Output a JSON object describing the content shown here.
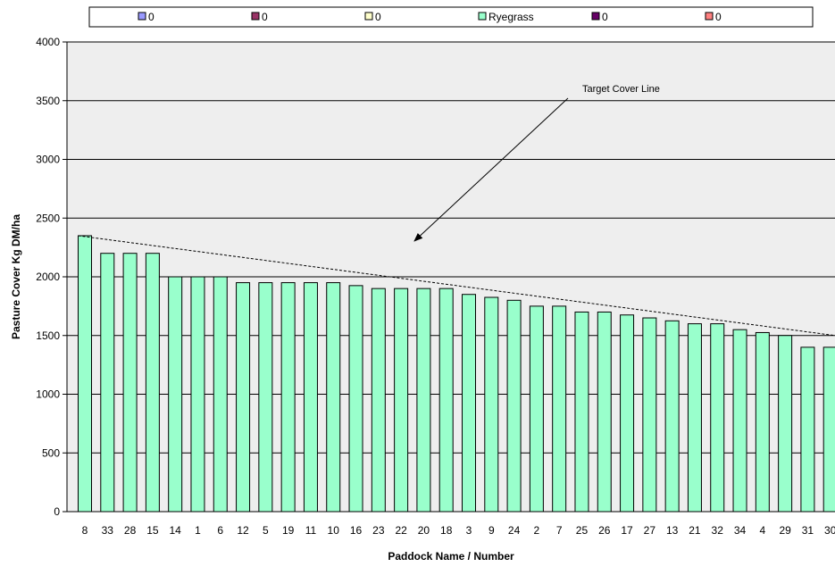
{
  "chart_data": {
    "type": "bar",
    "title": "",
    "xlabel": "Paddock Name / Number",
    "ylabel": "Pasture Cover Kg DM/ha",
    "ylim": [
      0,
      4000
    ],
    "yticks": [
      0,
      500,
      1000,
      1500,
      2000,
      2500,
      3000,
      3500,
      4000
    ],
    "grid": true,
    "categories": [
      "8",
      "33",
      "28",
      "15",
      "14",
      "1",
      "6",
      "12",
      "5",
      "19",
      "11",
      "10",
      "16",
      "23",
      "22",
      "20",
      "18",
      "3",
      "9",
      "24",
      "2",
      "7",
      "25",
      "26",
      "17",
      "27",
      "13",
      "21",
      "32",
      "34",
      "4",
      "29",
      "31",
      "30"
    ],
    "series": [
      {
        "name": "Ryegrass",
        "color": "#99ffcc",
        "values": [
          2350,
          2200,
          2200,
          2200,
          2000,
          2000,
          2000,
          1950,
          1950,
          1950,
          1950,
          1950,
          1925,
          1900,
          1900,
          1900,
          1900,
          1850,
          1825,
          1800,
          1750,
          1750,
          1700,
          1700,
          1675,
          1650,
          1625,
          1600,
          1600,
          1550,
          1525,
          1500,
          1400,
          1400
        ]
      }
    ],
    "legend": {
      "position": "top",
      "entries": [
        {
          "label": "0",
          "color": "#9999ff"
        },
        {
          "label": "0",
          "color": "#993366"
        },
        {
          "label": "0",
          "color": "#ffffcc"
        },
        {
          "label": "Ryegrass",
          "color": "#99ffcc"
        },
        {
          "label": "0",
          "color": "#660066"
        },
        {
          "label": "0",
          "color": "#ff8080"
        }
      ]
    },
    "target_line": {
      "from": 2350,
      "to": 1500
    },
    "annotations": [
      {
        "text": "Target Cover Line"
      }
    ]
  }
}
